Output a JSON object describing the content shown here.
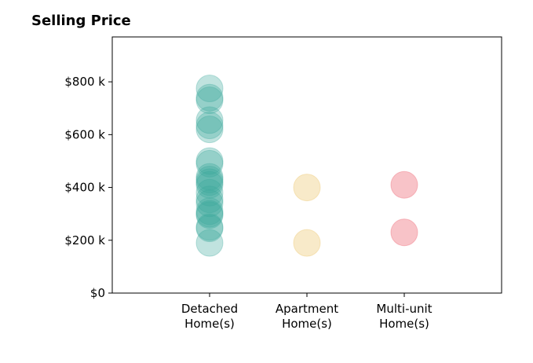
{
  "chart_data": {
    "type": "scatter",
    "title": "Selling Price",
    "xlabel": "",
    "ylabel": "",
    "ylim": [
      0,
      970
    ],
    "grid": false,
    "categories": [
      {
        "label": [
          "Detached",
          "Home(s)"
        ],
        "color": "#3aa99a",
        "alpha": 0.32
      },
      {
        "label": [
          "Apartment",
          "Home(s)"
        ],
        "color": "#e9b84c",
        "alpha": 0.3
      },
      {
        "label": [
          "Multi-unit",
          "Home(s)"
        ],
        "color": "#ef6f7d",
        "alpha": 0.42
      }
    ],
    "y_ticks": [
      {
        "value": 0,
        "label": "$0"
      },
      {
        "value": 200,
        "label": "$200 k"
      },
      {
        "value": 400,
        "label": "$400 k"
      },
      {
        "value": 600,
        "label": "$600 k"
      },
      {
        "value": 800,
        "label": "$800 k"
      }
    ],
    "series": [
      {
        "category": 0,
        "values": [
          775,
          740,
          730,
          655,
          635,
          620,
          500,
          490,
          440,
          430,
          420,
          410,
          380,
          355,
          340,
          310,
          300,
          295,
          250,
          245,
          190
        ]
      },
      {
        "category": 1,
        "values": [
          400,
          190
        ]
      },
      {
        "category": 2,
        "values": [
          410,
          230
        ]
      }
    ]
  }
}
